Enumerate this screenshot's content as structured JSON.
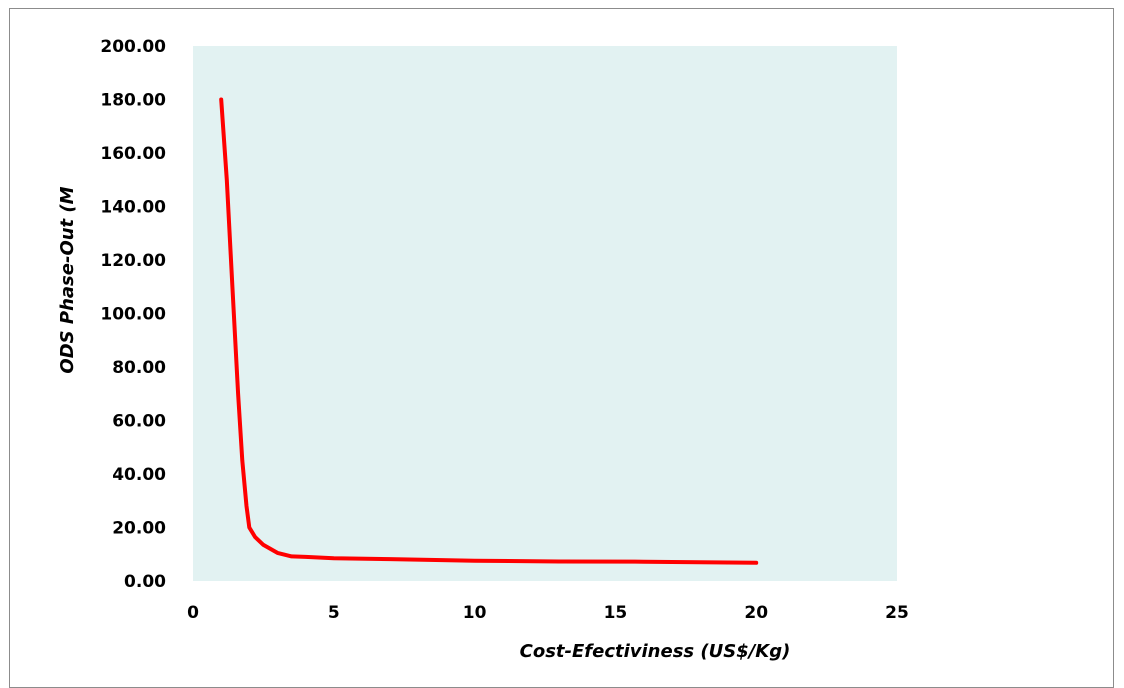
{
  "chart_data": {
    "type": "line",
    "title": "",
    "xlabel": "Cost-Efectiviness (US$/Kg)",
    "ylabel": "ODS Phase-Out (M",
    "xlim": [
      0,
      25
    ],
    "ylim": [
      0,
      200
    ],
    "x_ticks": [
      "0",
      "5",
      "10",
      "15",
      "20",
      "25"
    ],
    "y_ticks": [
      "0.00",
      "20.00",
      "40.00",
      "60.00",
      "80.00",
      "100.00",
      "120.00",
      "140.00",
      "160.00",
      "180.00",
      "200.00"
    ],
    "grid": false,
    "legend": "none",
    "plot_background": "#e2f2f2",
    "series": [
      {
        "color": "#ff0000",
        "points": [
          [
            1,
            180
          ],
          [
            1.2,
            150
          ],
          [
            1.4,
            110
          ],
          [
            1.6,
            70
          ],
          [
            1.75,
            45
          ],
          [
            1.9,
            28
          ],
          [
            2,
            20
          ],
          [
            2.2,
            16.5
          ],
          [
            2.5,
            13.5
          ],
          [
            3,
            10.5
          ],
          [
            3.5,
            9.2
          ],
          [
            4,
            9
          ],
          [
            5,
            8.5
          ],
          [
            7,
            8.2
          ],
          [
            10,
            7.6
          ],
          [
            13,
            7.3
          ],
          [
            16,
            7.2
          ],
          [
            20,
            6.8
          ]
        ]
      }
    ]
  }
}
